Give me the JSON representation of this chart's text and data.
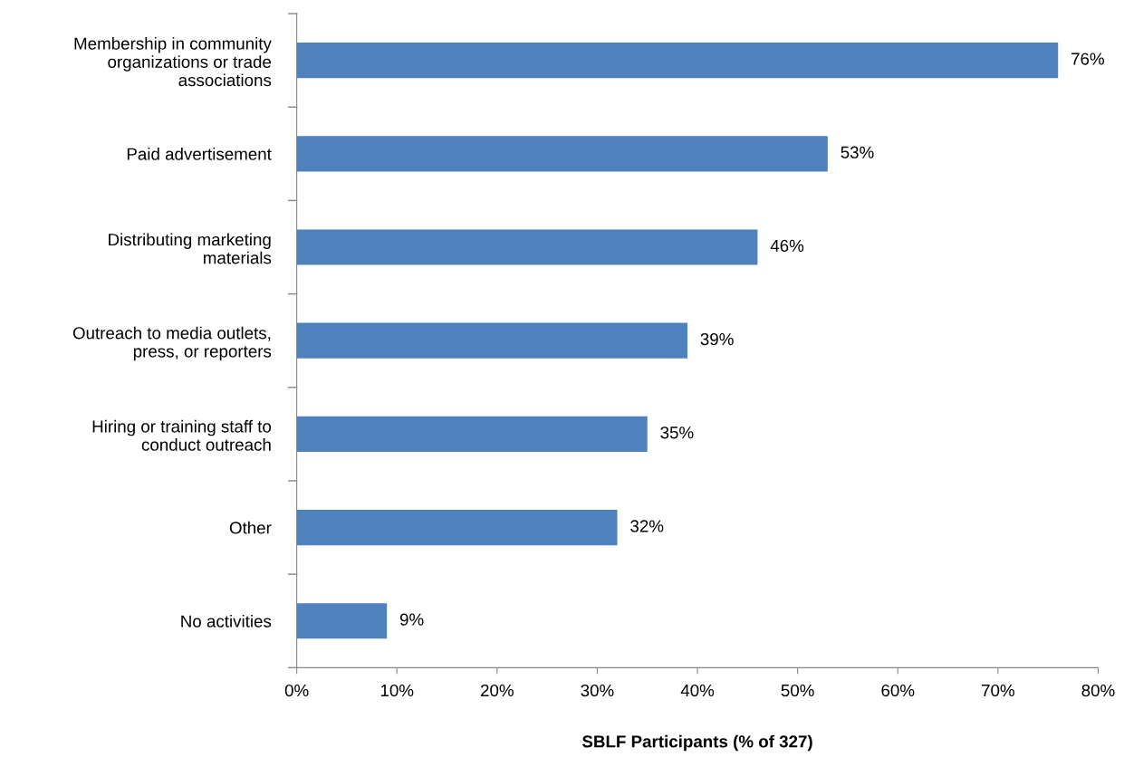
{
  "chart_data": {
    "type": "bar",
    "orientation": "horizontal",
    "xlabel": "SBLF Participants (% of 327)",
    "categories": [
      "Membership in community\norganizations or trade\nassociations",
      "Paid advertisement",
      "Distributing marketing\nmaterials",
      "Outreach to media outlets,\npress, or reporters",
      "Hiring or training staff to\nconduct outreach",
      "Other",
      "No activities"
    ],
    "values": [
      76,
      53,
      46,
      39,
      35,
      32,
      9
    ],
    "value_labels": [
      "76%",
      "53%",
      "46%",
      "39%",
      "35%",
      "32%",
      "9%"
    ],
    "color": "#4f81bd",
    "xlim": [
      0,
      80
    ],
    "xticks": [
      {
        "value": 0,
        "label": "0%"
      },
      {
        "value": 10,
        "label": "10%"
      },
      {
        "value": 20,
        "label": "20%"
      },
      {
        "value": 30,
        "label": "30%"
      },
      {
        "value": 40,
        "label": "40%"
      },
      {
        "value": 50,
        "label": "50%"
      },
      {
        "value": 60,
        "label": "60%"
      },
      {
        "value": 70,
        "label": "70%"
      },
      {
        "value": 80,
        "label": "80%"
      }
    ],
    "grid": false,
    "legend": false
  }
}
